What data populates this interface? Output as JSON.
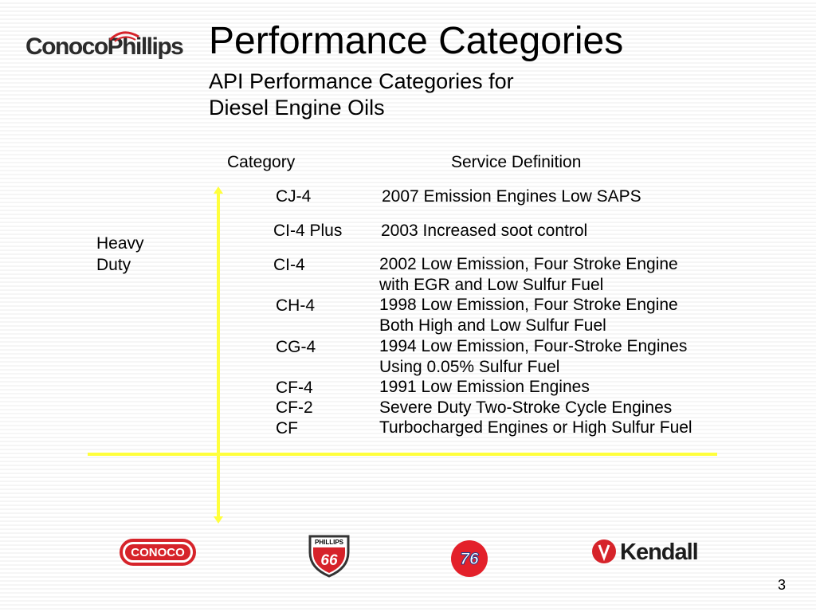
{
  "header": {
    "logo_text": "ConocoPhillips",
    "title": "Performance Categories",
    "subtitle_line1": "API Performance Categories for",
    "subtitle_line2": "Diesel Engine Oils"
  },
  "table": {
    "col_category": "Category",
    "col_definition": "Service Definition",
    "side_label_line1": "Heavy",
    "side_label_line2": "Duty",
    "rows": [
      {
        "category": "CJ-4",
        "definition": [
          "2007 Emission Engines Low SAPS"
        ]
      },
      {
        "category": "CI-4 Plus",
        "definition": [
          "2003 Increased soot control"
        ]
      },
      {
        "category": "CI-4",
        "definition": [
          "2002 Low Emission, Four Stroke Engine",
          "with EGR and Low Sulfur Fuel"
        ]
      },
      {
        "category": "CH-4",
        "definition": [
          "1998 Low Emission, Four Stroke Engine",
          "Both High and Low Sulfur Fuel"
        ]
      },
      {
        "category": "CG-4",
        "definition": [
          "1994 Low Emission, Four-Stroke Engines",
          "Using 0.05% Sulfur Fuel"
        ]
      },
      {
        "category": "CF-4",
        "definition": [
          "1991 Low Emission Engines"
        ]
      },
      {
        "category": "CF-2",
        "definition": [
          "Severe Duty Two-Stroke Cycle Engines"
        ]
      },
      {
        "category": "CF",
        "definition": [
          "Turbocharged Engines or High Sulfur Fuel"
        ]
      }
    ]
  },
  "brands": {
    "conoco": "CONOCO",
    "phillips_top": "PHILLIPS",
    "phillips_num": "66",
    "seventy_six": "76",
    "kendall": "Kendall"
  },
  "footer": {
    "page_number": "3"
  },
  "colors": {
    "accent_line": "#ffff3c",
    "brand_red": "#d6232a"
  }
}
